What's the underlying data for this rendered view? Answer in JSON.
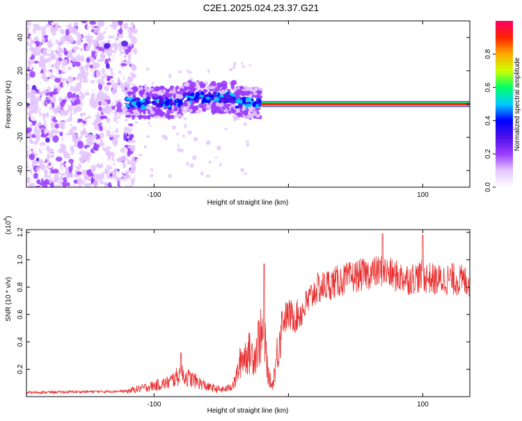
{
  "title": "C2E1.2025.024.23.37.G21",
  "spectrogram": {
    "type": "heatmap",
    "xlabel": "Height of straight line (km)",
    "ylabel": "Frequency (Hz)",
    "xlim": [
      -195,
      135
    ],
    "ylim": [
      -50,
      50
    ],
    "xticks": [
      -100,
      0,
      100
    ],
    "xtick_labels": [
      "-100",
      "",
      "100"
    ],
    "yticks": [
      -40,
      -20,
      0,
      20,
      40
    ],
    "ytick_labels": [
      "-40",
      "-20",
      "0",
      "20",
      "40"
    ],
    "colorbar": {
      "label": "Normalized spectral amplitude",
      "range": [
        0,
        1
      ],
      "ticks": [
        0.0,
        0.2,
        0.4,
        0.6,
        0.8
      ],
      "tick_labels": [
        "0.0",
        "0.2",
        "0.4",
        "0.6",
        "0.8"
      ],
      "colors": [
        "#ffffff",
        "#e4c6ff",
        "#9a3cff",
        "#4f10ea",
        "#0000ff",
        "#00ccff",
        "#00ff66",
        "#ccff00",
        "#ffaa00",
        "#ff2200",
        "#ff0066"
      ]
    },
    "regions": [
      {
        "x_range": [
          -195,
          -120
        ],
        "freq_range": [
          -50,
          50
        ],
        "amplitude": 0.12,
        "description_color": "#6a2cff"
      },
      {
        "x_range": [
          -120,
          -20
        ],
        "freq_range": [
          -8,
          10
        ],
        "amplitude": 0.35
      },
      {
        "x_range": [
          -20,
          135
        ],
        "freq_center": 0,
        "amplitude": 0.9
      }
    ],
    "grid": false
  },
  "snr": {
    "type": "line",
    "xlabel": "Height of straight line (km)",
    "ylabel": "SNR (10 * v/v)",
    "multiplier_label": "(x10",
    "multiplier_exp": "4",
    "multiplier_close": ")",
    "xlim": [
      -195,
      135
    ],
    "ylim": [
      0,
      1.22
    ],
    "xticks": [
      -100,
      0,
      100
    ],
    "xtick_labels": [
      "-100",
      "",
      "100"
    ],
    "yticks": [
      0.2,
      0.4,
      0.6,
      0.8,
      1.0,
      1.2
    ],
    "ytick_labels": [
      "0.2",
      "0.4",
      "0.6",
      "0.8",
      "1.0",
      "1.2"
    ],
    "color": "#e83030",
    "envelope": {
      "x": [
        -195,
        -120,
        -90,
        -80,
        -70,
        -60,
        -50,
        -45,
        -40,
        -35,
        -30,
        -25,
        -22,
        -18,
        -15,
        -12,
        -10,
        -5,
        0,
        5,
        10,
        15,
        20,
        30,
        40,
        50,
        60,
        70,
        80,
        90,
        100,
        110,
        120,
        135
      ],
      "y": [
        0.03,
        0.04,
        0.1,
        0.16,
        0.12,
        0.07,
        0.05,
        0.06,
        0.1,
        0.28,
        0.32,
        0.3,
        0.42,
        0.45,
        0.15,
        0.08,
        0.2,
        0.55,
        0.6,
        0.58,
        0.62,
        0.7,
        0.78,
        0.82,
        0.85,
        0.88,
        0.9,
        0.92,
        0.88,
        0.86,
        0.88,
        0.85,
        0.86,
        0.84
      ]
    },
    "peaks": [
      {
        "x": -80,
        "y": 0.32
      },
      {
        "x": -18,
        "y": 0.97
      },
      {
        "x": 70,
        "y": 1.19
      },
      {
        "x": 100,
        "y": 1.18
      }
    ],
    "grid": false
  }
}
